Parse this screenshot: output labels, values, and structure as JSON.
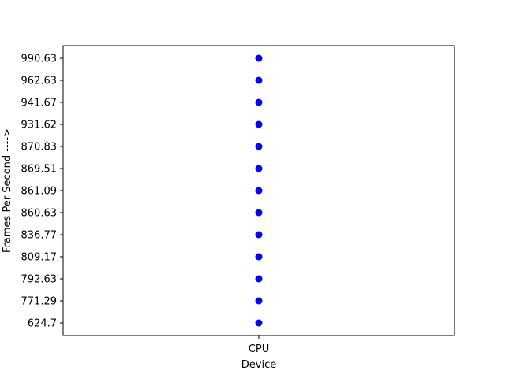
{
  "chart_data": {
    "type": "scatter",
    "title": "",
    "xlabel": "Device",
    "ylabel": "Frames Per Second  ---->",
    "categories": [
      "CPU"
    ],
    "y_categories": [
      "624.7",
      "771.29",
      "792.63",
      "809.17",
      "836.77",
      "860.63",
      "861.09",
      "869.51",
      "870.83",
      "931.62",
      "941.67",
      "962.63",
      "990.63"
    ],
    "series": [
      {
        "x": [
          "CPU",
          "CPU",
          "CPU",
          "CPU",
          "CPU",
          "CPU",
          "CPU",
          "CPU",
          "CPU",
          "CPU",
          "CPU",
          "CPU",
          "CPU"
        ],
        "y": [
          "624.7",
          "771.29",
          "792.63",
          "809.17",
          "836.77",
          "860.63",
          "861.09",
          "869.51",
          "870.83",
          "931.62",
          "941.67",
          "962.63",
          "990.63"
        ],
        "color": "#0000ff"
      }
    ],
    "y_axis_note": "categorical axis; tick labels listed in order from bottom to top",
    "grid": false,
    "legend": "none"
  }
}
